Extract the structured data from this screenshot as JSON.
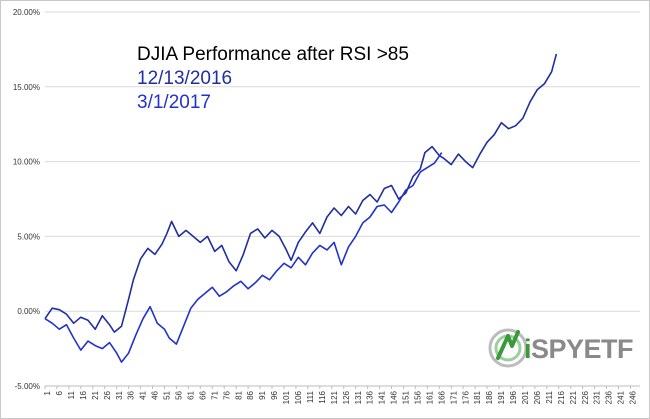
{
  "chart_data": {
    "type": "line",
    "title": "DJIA Performance after RSI >85",
    "xlabel": "",
    "ylabel": "",
    "ylim": [
      -5,
      20
    ],
    "xlim": [
      1,
      250
    ],
    "yticks": [
      "-5.00%",
      "0.00%",
      "5.00%",
      "10.00%",
      "15.00%",
      "20.00%"
    ],
    "xticks": [
      "1",
      "6",
      "11",
      "16",
      "21",
      "26",
      "31",
      "36",
      "41",
      "46",
      "51",
      "56",
      "61",
      "66",
      "71",
      "76",
      "81",
      "86",
      "91",
      "96",
      "101",
      "106",
      "111",
      "116",
      "121",
      "126",
      "131",
      "136",
      "141",
      "146",
      "151",
      "156",
      "161",
      "166",
      "171",
      "176",
      "181",
      "186",
      "191",
      "196",
      "201",
      "206",
      "211",
      "216",
      "221",
      "226",
      "231",
      "236",
      "241",
      "246"
    ],
    "grid": "horizontal",
    "colors": {
      "series1": "#1f2fa0",
      "series2": "#2233cc",
      "title": "#000000"
    },
    "series": [
      {
        "name": "12/13/2016",
        "x": [
          1,
          4,
          7,
          10,
          13,
          16,
          19,
          22,
          25,
          28,
          30,
          33,
          36,
          38,
          41,
          44,
          47,
          50,
          52,
          54,
          57,
          60,
          63,
          66,
          69,
          72,
          75,
          78,
          81,
          84,
          87,
          90,
          93,
          96,
          99,
          102,
          104,
          107,
          110,
          113,
          116,
          119,
          122,
          125,
          128,
          131,
          134,
          137,
          140,
          143,
          146,
          149,
          152,
          155,
          158,
          160,
          163,
          166,
          168,
          171,
          174,
          177,
          180,
          183,
          186,
          189,
          192,
          195,
          198,
          201,
          204,
          207,
          210,
          213,
          215
        ],
        "values": [
          -0.5,
          0.2,
          0.1,
          -0.2,
          -0.8,
          -0.4,
          -0.6,
          -1.2,
          -0.3,
          -0.9,
          -1.4,
          -1.0,
          0.8,
          2.1,
          3.5,
          4.2,
          3.8,
          4.5,
          5.2,
          6.0,
          5.0,
          5.4,
          5.0,
          4.6,
          5.0,
          4.0,
          4.4,
          3.3,
          2.7,
          3.8,
          5.2,
          5.5,
          4.9,
          5.4,
          5.0,
          4.1,
          3.4,
          4.6,
          5.3,
          5.9,
          5.2,
          6.3,
          6.9,
          6.4,
          7.0,
          6.5,
          7.4,
          7.8,
          7.3,
          8.2,
          8.4,
          7.5,
          7.9,
          9.0,
          9.5,
          10.6,
          11.0,
          10.4,
          10.2,
          9.8,
          10.5,
          10.0,
          9.6,
          10.5,
          11.3,
          11.8,
          12.6,
          12.2,
          12.4,
          12.9,
          14.0,
          14.8,
          15.2,
          16.0,
          17.2
        ]
      },
      {
        "name": "3/1/2017",
        "x": [
          1,
          4,
          7,
          10,
          13,
          16,
          19,
          22,
          25,
          28,
          31,
          33,
          36,
          39,
          42,
          45,
          48,
          51,
          53,
          56,
          59,
          62,
          65,
          68,
          71,
          74,
          77,
          80,
          83,
          86,
          89,
          92,
          95,
          98,
          101,
          104,
          107,
          110,
          113,
          116,
          119,
          122,
          125,
          128,
          131,
          134,
          137,
          140,
          143,
          146,
          149,
          152,
          155,
          158,
          161,
          164,
          167
        ],
        "values": [
          -0.5,
          -0.8,
          -1.2,
          -0.9,
          -1.8,
          -2.6,
          -2.0,
          -2.3,
          -2.5,
          -2.1,
          -2.8,
          -3.4,
          -2.8,
          -1.6,
          -0.5,
          0.3,
          -0.8,
          -1.2,
          -1.8,
          -2.2,
          -1.0,
          0.2,
          0.8,
          1.2,
          1.6,
          1.0,
          1.3,
          1.7,
          2.0,
          1.5,
          1.9,
          2.4,
          2.1,
          2.7,
          3.2,
          2.9,
          3.6,
          3.1,
          3.9,
          4.4,
          4.1,
          4.6,
          3.1,
          4.3,
          5.0,
          5.9,
          6.3,
          7.0,
          7.1,
          6.6,
          7.3,
          8.1,
          8.4,
          9.3,
          9.6,
          9.9,
          10.6
        ]
      }
    ]
  },
  "watermark": {
    "text": "iSPYETF",
    "colors": [
      "#3a9a3a",
      "#8a8a8a"
    ]
  }
}
